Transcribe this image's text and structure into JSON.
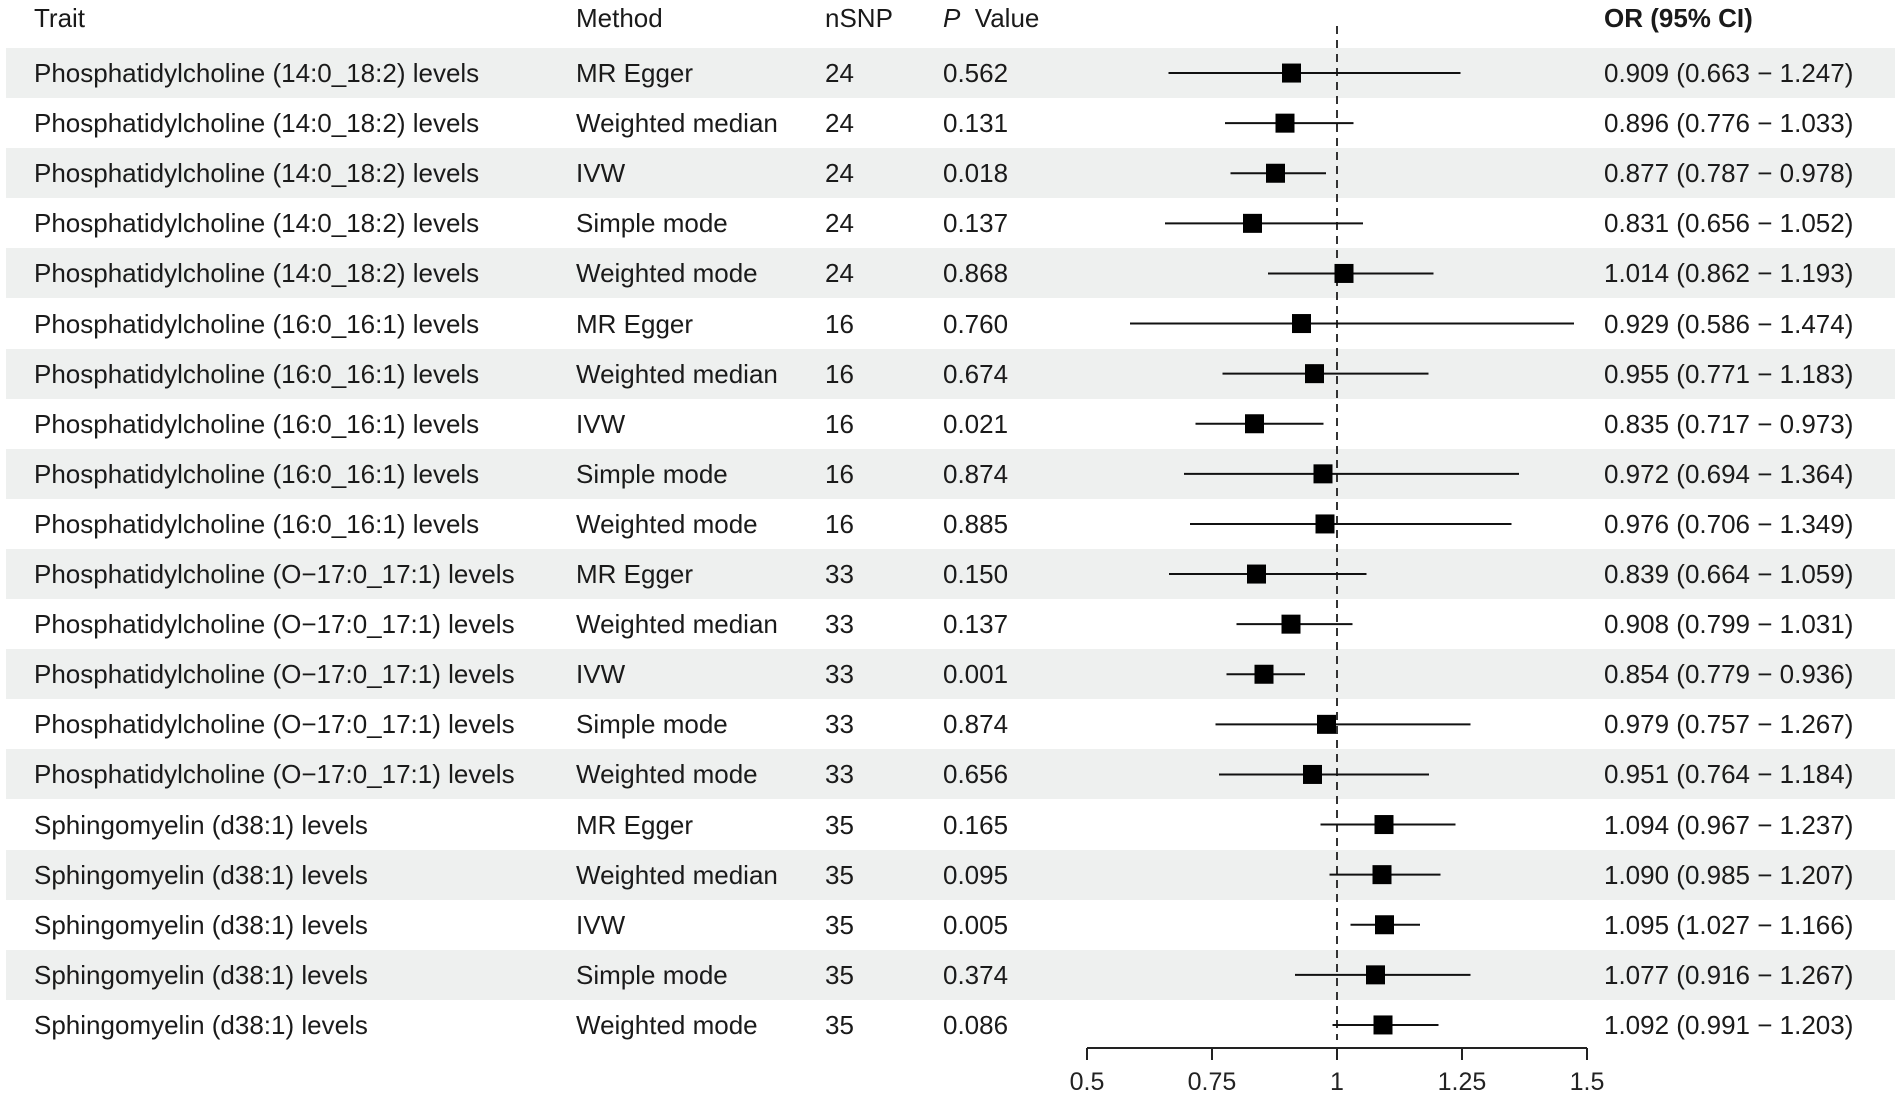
{
  "headers": {
    "trait": "Trait",
    "method": "Method",
    "nsnp": "nSNP",
    "p_italic": "P",
    "p_rest": "Value",
    "or_ci": "OR (95% CI)"
  },
  "rows": [
    {
      "trait": "Phosphatidylcholine (14:0_18:2) levels",
      "method": "MR Egger",
      "nsnp": "24",
      "p": "0.562",
      "or_ci": "0.909 (0.663 − 1.247)"
    },
    {
      "trait": "Phosphatidylcholine (14:0_18:2) levels",
      "method": "Weighted median",
      "nsnp": "24",
      "p": "0.131",
      "or_ci": "0.896 (0.776 − 1.033)"
    },
    {
      "trait": "Phosphatidylcholine (14:0_18:2) levels",
      "method": "IVW",
      "nsnp": "24",
      "p": "0.018",
      "or_ci": "0.877 (0.787 − 0.978)"
    },
    {
      "trait": "Phosphatidylcholine (14:0_18:2) levels",
      "method": "Simple mode",
      "nsnp": "24",
      "p": "0.137",
      "or_ci": "0.831 (0.656 − 1.052)"
    },
    {
      "trait": "Phosphatidylcholine (14:0_18:2) levels",
      "method": "Weighted mode",
      "nsnp": "24",
      "p": "0.868",
      "or_ci": "1.014 (0.862 − 1.193)"
    },
    {
      "trait": "Phosphatidylcholine (16:0_16:1) levels",
      "method": "MR Egger",
      "nsnp": "16",
      "p": "0.760",
      "or_ci": "0.929 (0.586 − 1.474)"
    },
    {
      "trait": "Phosphatidylcholine (16:0_16:1) levels",
      "method": "Weighted median",
      "nsnp": "16",
      "p": "0.674",
      "or_ci": "0.955 (0.771 − 1.183)"
    },
    {
      "trait": "Phosphatidylcholine (16:0_16:1) levels",
      "method": "IVW",
      "nsnp": "16",
      "p": "0.021",
      "or_ci": "0.835 (0.717 − 0.973)"
    },
    {
      "trait": "Phosphatidylcholine (16:0_16:1) levels",
      "method": "Simple mode",
      "nsnp": "16",
      "p": "0.874",
      "or_ci": "0.972 (0.694 − 1.364)"
    },
    {
      "trait": "Phosphatidylcholine (16:0_16:1) levels",
      "method": "Weighted mode",
      "nsnp": "16",
      "p": "0.885",
      "or_ci": "0.976 (0.706 − 1.349)"
    },
    {
      "trait": "Phosphatidylcholine (O−17:0_17:1) levels",
      "method": "MR Egger",
      "nsnp": "33",
      "p": "0.150",
      "or_ci": "0.839 (0.664 − 1.059)"
    },
    {
      "trait": "Phosphatidylcholine (O−17:0_17:1) levels",
      "method": "Weighted median",
      "nsnp": "33",
      "p": "0.137",
      "or_ci": "0.908 (0.799 − 1.031)"
    },
    {
      "trait": "Phosphatidylcholine (O−17:0_17:1) levels",
      "method": "IVW",
      "nsnp": "33",
      "p": "0.001",
      "or_ci": "0.854 (0.779 − 0.936)"
    },
    {
      "trait": "Phosphatidylcholine (O−17:0_17:1) levels",
      "method": "Simple mode",
      "nsnp": "33",
      "p": "0.874",
      "or_ci": "0.979 (0.757 − 1.267)"
    },
    {
      "trait": "Phosphatidylcholine (O−17:0_17:1) levels",
      "method": "Weighted mode",
      "nsnp": "33",
      "p": "0.656",
      "or_ci": "0.951 (0.764 − 1.184)"
    },
    {
      "trait": "Sphingomyelin (d38:1) levels",
      "method": "MR Egger",
      "nsnp": "35",
      "p": "0.165",
      "or_ci": "1.094 (0.967 − 1.237)"
    },
    {
      "trait": "Sphingomyelin (d38:1) levels",
      "method": "Weighted median",
      "nsnp": "35",
      "p": "0.095",
      "or_ci": "1.090 (0.985 − 1.207)"
    },
    {
      "trait": "Sphingomyelin (d38:1) levels",
      "method": "IVW",
      "nsnp": "35",
      "p": "0.005",
      "or_ci": "1.095 (1.027 − 1.166)"
    },
    {
      "trait": "Sphingomyelin (d38:1) levels",
      "method": "Simple mode",
      "nsnp": "35",
      "p": "0.374",
      "or_ci": "1.077 (0.916 − 1.267)"
    },
    {
      "trait": "Sphingomyelin (d38:1) levels",
      "method": "Weighted mode",
      "nsnp": "35",
      "p": "0.086",
      "or_ci": "1.092 (0.991 − 1.203)"
    }
  ],
  "chart_data": {
    "type": "forest",
    "title": "",
    "xlabel": "",
    "xlim": [
      0.5,
      1.5
    ],
    "xticks": [
      0.5,
      0.75,
      1,
      1.25,
      1.5
    ],
    "xtick_labels": [
      "0.5",
      "0.75",
      "1",
      "1.25",
      "1.5"
    ],
    "reference_line": 1,
    "points": [
      {
        "or": 0.909,
        "lo": 0.663,
        "hi": 1.247
      },
      {
        "or": 0.896,
        "lo": 0.776,
        "hi": 1.033
      },
      {
        "or": 0.877,
        "lo": 0.787,
        "hi": 0.978
      },
      {
        "or": 0.831,
        "lo": 0.656,
        "hi": 1.052
      },
      {
        "or": 1.014,
        "lo": 0.862,
        "hi": 1.193
      },
      {
        "or": 0.929,
        "lo": 0.586,
        "hi": 1.474
      },
      {
        "or": 0.955,
        "lo": 0.771,
        "hi": 1.183
      },
      {
        "or": 0.835,
        "lo": 0.717,
        "hi": 0.973
      },
      {
        "or": 0.972,
        "lo": 0.694,
        "hi": 1.364
      },
      {
        "or": 0.976,
        "lo": 0.706,
        "hi": 1.349
      },
      {
        "or": 0.839,
        "lo": 0.664,
        "hi": 1.059
      },
      {
        "or": 0.908,
        "lo": 0.799,
        "hi": 1.031
      },
      {
        "or": 0.854,
        "lo": 0.779,
        "hi": 0.936
      },
      {
        "or": 0.979,
        "lo": 0.757,
        "hi": 1.267
      },
      {
        "or": 0.951,
        "lo": 0.764,
        "hi": 1.184
      },
      {
        "or": 1.094,
        "lo": 0.967,
        "hi": 1.237
      },
      {
        "or": 1.09,
        "lo": 0.985,
        "hi": 1.207
      },
      {
        "or": 1.095,
        "lo": 1.027,
        "hi": 1.166
      },
      {
        "or": 1.077,
        "lo": 0.916,
        "hi": 1.267
      },
      {
        "or": 1.092,
        "lo": 0.991,
        "hi": 1.203
      }
    ]
  }
}
